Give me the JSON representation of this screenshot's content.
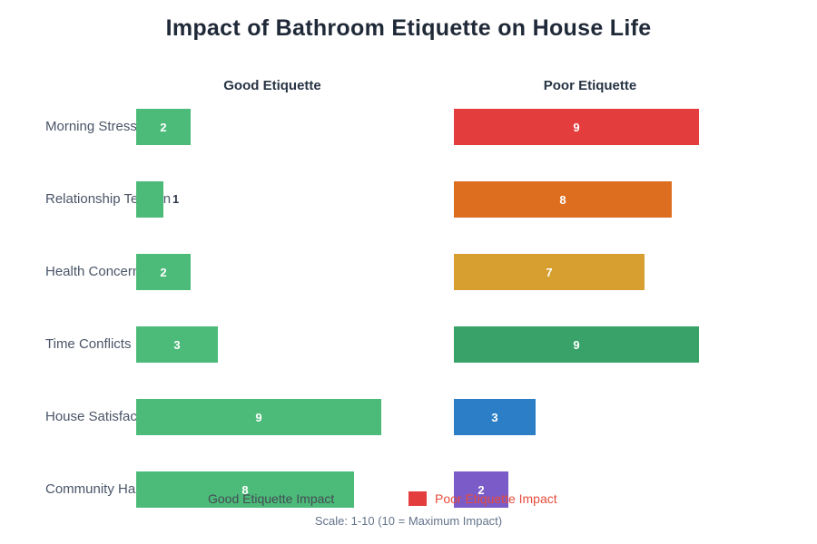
{
  "title": "Impact of Bathroom Etiquette on House Life",
  "columns": {
    "good": "Good Etiquette",
    "poor": "Poor Etiquette"
  },
  "legend": {
    "good": {
      "label": "Good Etiquette Impact",
      "swatch_color": "#4CBB79",
      "text_color": "#444B55"
    },
    "poor": {
      "label": "Poor Etiquette Impact",
      "swatch_color": "#E43D3D",
      "text_color": "#E74C3C"
    }
  },
  "scale_note": "Scale: 1-10 (10 = Maximum Impact)",
  "chart_data": {
    "type": "bar",
    "orientation": "horizontal",
    "title": "Impact of Bathroom Etiquette on House Life",
    "value_range": [
      0,
      10
    ],
    "grid": false,
    "good_color": "#4CBB79",
    "categories": [
      "Morning Stress",
      "Relationship Tension",
      "Health Concerns",
      "Time Conflicts",
      "House Satisfaction",
      "Community Harmony"
    ],
    "series": [
      {
        "name": "Good Etiquette",
        "values": [
          2,
          1,
          2,
          3,
          9,
          8
        ]
      },
      {
        "name": "Poor Etiquette",
        "values": [
          9,
          8,
          7,
          9,
          3,
          2
        ]
      }
    ],
    "rows": [
      {
        "category": "Morning Stress",
        "good": 2,
        "poor": 9,
        "poor_color": "#E43D3D"
      },
      {
        "category": "Relationship Tension",
        "good": 1,
        "poor": 8,
        "poor_color": "#DD6E20"
      },
      {
        "category": "Health Concerns",
        "good": 2,
        "poor": 7,
        "poor_color": "#D79F2F"
      },
      {
        "category": "Time Conflicts",
        "good": 3,
        "poor": 9,
        "poor_color": "#39A269"
      },
      {
        "category": "House Satisfaction",
        "good": 9,
        "poor": 3,
        "poor_color": "#2C7FC6"
      },
      {
        "category": "Community Harmony",
        "good": 8,
        "poor": 2,
        "poor_color": "#7A5BC7"
      }
    ]
  }
}
